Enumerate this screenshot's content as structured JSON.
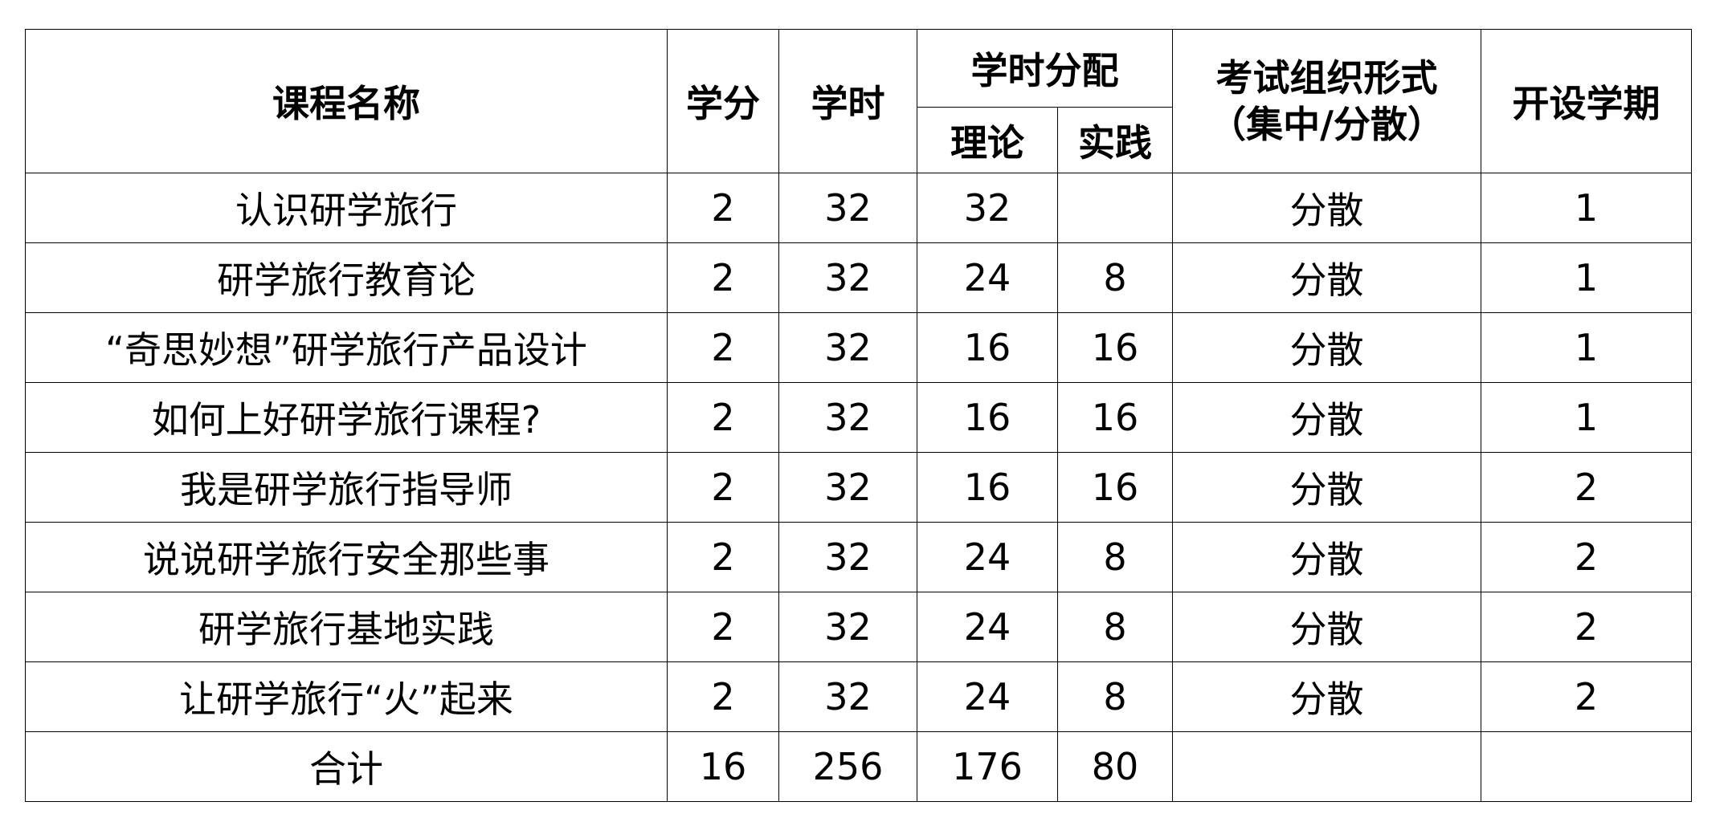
{
  "header": {
    "course_name": "课程名称",
    "credits": "学分",
    "hours": "学时",
    "hours_distribution": "学时分配",
    "theory": "理论",
    "practice": "实践",
    "exam_form_line1": "考试组织形式",
    "exam_form_line2": "（集中/分散）",
    "semester": "开设学期"
  },
  "rows": [
    {
      "name": "认识研学旅行",
      "credits": "2",
      "hours": "32",
      "theory": "32",
      "practice": "",
      "exam": "分散",
      "semester": "1"
    },
    {
      "name": "研学旅行教育论",
      "credits": "2",
      "hours": "32",
      "theory": "24",
      "practice": "8",
      "exam": "分散",
      "semester": "1"
    },
    {
      "name": "“奇思妙想”研学旅行产品设计",
      "credits": "2",
      "hours": "32",
      "theory": "16",
      "practice": "16",
      "exam": "分散",
      "semester": "1"
    },
    {
      "name": "如何上好研学旅行课程?",
      "credits": "2",
      "hours": "32",
      "theory": "16",
      "practice": "16",
      "exam": "分散",
      "semester": "1"
    },
    {
      "name": "我是研学旅行指导师",
      "credits": "2",
      "hours": "32",
      "theory": "16",
      "practice": "16",
      "exam": "分散",
      "semester": "2"
    },
    {
      "name": "说说研学旅行安全那些事",
      "credits": "2",
      "hours": "32",
      "theory": "24",
      "practice": "8",
      "exam": "分散",
      "semester": "2"
    },
    {
      "name": "研学旅行基地实践",
      "credits": "2",
      "hours": "32",
      "theory": "24",
      "practice": "8",
      "exam": "分散",
      "semester": "2"
    },
    {
      "name": "让研学旅行“火”起来",
      "credits": "2",
      "hours": "32",
      "theory": "24",
      "practice": "8",
      "exam": "分散",
      "semester": "2"
    }
  ],
  "total": {
    "label": "合计",
    "credits": "16",
    "hours": "256",
    "theory": "176",
    "practice": "80",
    "exam": "",
    "semester": ""
  }
}
